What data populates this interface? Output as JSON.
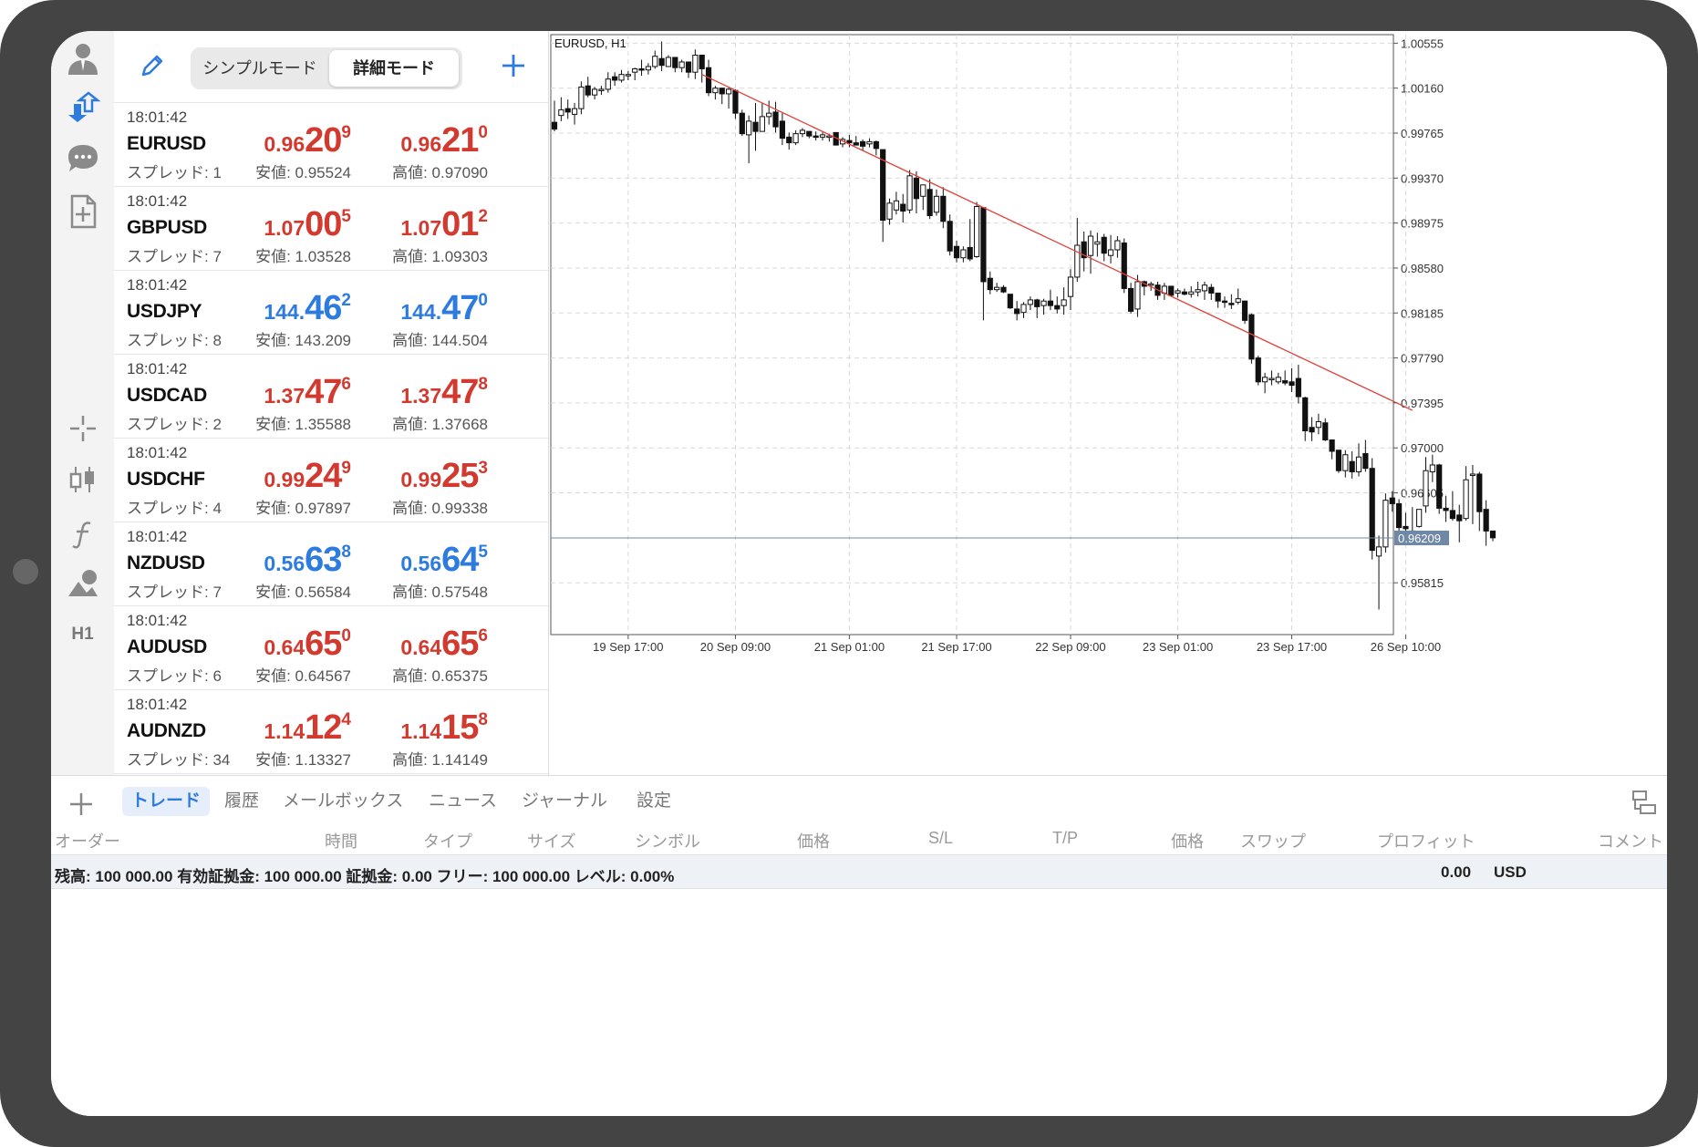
{
  "toolbar": {
    "icons": [
      "account-icon",
      "trade-arrows-icon",
      "chat-icon",
      "new-document-icon",
      "crosshair-icon",
      "chart-type-icon",
      "indicator-icon",
      "objects-icon"
    ],
    "timeframe": "H1"
  },
  "quotes_header": {
    "simple_mode": "シンプルモード",
    "detail_mode": "詳細モード"
  },
  "quotes": [
    {
      "time": "18:01:42",
      "symbol": "EURUSD",
      "spread": "スプレッド: 1",
      "bid": {
        "small": "0.96",
        "big": "20",
        "pip": "9"
      },
      "ask": {
        "small": "0.96",
        "big": "21",
        "pip": "0"
      },
      "low": "安値: 0.95524",
      "high": "高値: 0.97090",
      "color": "red"
    },
    {
      "time": "18:01:42",
      "symbol": "GBPUSD",
      "spread": "スプレッド: 7",
      "bid": {
        "small": "1.07",
        "big": "00",
        "pip": "5"
      },
      "ask": {
        "small": "1.07",
        "big": "01",
        "pip": "2"
      },
      "low": "安値: 1.03528",
      "high": "高値: 1.09303",
      "color": "red"
    },
    {
      "time": "18:01:42",
      "symbol": "USDJPY",
      "spread": "スプレッド: 8",
      "bid": {
        "small": "144.",
        "big": "46",
        "pip": "2"
      },
      "ask": {
        "small": "144.",
        "big": "47",
        "pip": "0"
      },
      "low": "安値: 143.209",
      "high": "高値: 144.504",
      "color": "blue"
    },
    {
      "time": "18:01:42",
      "symbol": "USDCAD",
      "spread": "スプレッド: 2",
      "bid": {
        "small": "1.37",
        "big": "47",
        "pip": "6"
      },
      "ask": {
        "small": "1.37",
        "big": "47",
        "pip": "8"
      },
      "low": "安値: 1.35588",
      "high": "高値: 1.37668",
      "color": "red"
    },
    {
      "time": "18:01:42",
      "symbol": "USDCHF",
      "spread": "スプレッド: 4",
      "bid": {
        "small": "0.99",
        "big": "24",
        "pip": "9"
      },
      "ask": {
        "small": "0.99",
        "big": "25",
        "pip": "3"
      },
      "low": "安値: 0.97897",
      "high": "高値: 0.99338",
      "color": "red"
    },
    {
      "time": "18:01:42",
      "symbol": "NZDUSD",
      "spread": "スプレッド: 7",
      "bid": {
        "small": "0.56",
        "big": "63",
        "pip": "8"
      },
      "ask": {
        "small": "0.56",
        "big": "64",
        "pip": "5"
      },
      "low": "安値: 0.56584",
      "high": "高値: 0.57548",
      "color": "blue"
    },
    {
      "time": "18:01:42",
      "symbol": "AUDUSD",
      "spread": "スプレッド: 6",
      "bid": {
        "small": "0.64",
        "big": "65",
        "pip": "0"
      },
      "ask": {
        "small": "0.64",
        "big": "65",
        "pip": "6"
      },
      "low": "安値: 0.64567",
      "high": "高値: 0.65375",
      "color": "red"
    },
    {
      "time": "18:01:42",
      "symbol": "AUDNZD",
      "spread": "スプレッド: 34",
      "bid": {
        "small": "1.14",
        "big": "12",
        "pip": "4"
      },
      "ask": {
        "small": "1.14",
        "big": "15",
        "pip": "8"
      },
      "low": "安値: 1.13327",
      "high": "高値: 1.14149",
      "color": "red"
    }
  ],
  "chart_data": {
    "type": "candlestick",
    "title": "EURUSD, H1",
    "y_ticks": [
      "1.00555",
      "1.00160",
      "0.99765",
      "0.99370",
      "0.98975",
      "0.98580",
      "0.98185",
      "0.97790",
      "0.97395",
      "0.97000",
      "0.96605",
      "0.96209",
      "0.95815"
    ],
    "x_ticks": [
      "19 Sep 17:00",
      "20 Sep 09:00",
      "21 Sep 01:00",
      "21 Sep 17:00",
      "22 Sep 09:00",
      "23 Sep 01:00",
      "23 Sep 17:00",
      "26 Sep 10:00"
    ],
    "ylim": [
      0.9536,
      1.0063
    ],
    "current_price": 0.96209,
    "current_price_label": "0.96209",
    "grid": true,
    "trendline": {
      "from": {
        "bar": 22,
        "price": 1.0028
      },
      "to": {
        "bar": 128,
        "price": 0.9733
      }
    },
    "candles": [
      [
        0.9986,
        0.998,
        1.0005,
        0.9978
      ],
      [
        0.9992,
        0.9997,
        1.0008,
        0.9987
      ],
      [
        0.9998,
        0.9995,
        1.0006,
        0.9989
      ],
      [
        0.9993,
        0.9998,
        1.0003,
        0.9984
      ],
      [
        0.9998,
        1.0017,
        1.0022,
        0.9993
      ],
      [
        1.0018,
        1.001,
        1.0026,
        1.0008
      ],
      [
        1.001,
        1.0015,
        1.0017,
        1.0006
      ],
      [
        1.0015,
        1.0015,
        1.0018,
        1.001
      ],
      [
        1.0015,
        1.0024,
        1.003,
        1.0012
      ],
      [
        1.0026,
        1.0023,
        1.003,
        1.0018
      ],
      [
        1.0023,
        1.0028,
        1.0032,
        1.0021
      ],
      [
        1.0027,
        1.0028,
        1.0031,
        1.0023
      ],
      [
        1.003,
        1.0033,
        1.0034,
        1.0023
      ],
      [
        1.0033,
        1.0032,
        1.0041,
        1.0027
      ],
      [
        1.0032,
        1.0035,
        1.0038,
        1.0028
      ],
      [
        1.0035,
        1.0044,
        1.0049,
        1.0033
      ],
      [
        1.0042,
        1.0036,
        1.0057,
        1.0031
      ],
      [
        1.0035,
        1.0043,
        1.0045,
        1.0035
      ],
      [
        1.0043,
        1.0034,
        1.0043,
        1.003
      ],
      [
        1.0034,
        1.0039,
        1.0041,
        1.003
      ],
      [
        1.0039,
        1.003,
        1.0039,
        1.0025
      ],
      [
        1.003,
        1.0045,
        1.005,
        1.0024
      ],
      [
        1.0045,
        1.0033,
        1.0045,
        1.0021
      ],
      [
        1.0034,
        1.0012,
        1.0041,
        1.0009
      ],
      [
        1.0012,
        1.0016,
        1.0018,
        1.0006
      ],
      [
        1.0016,
        1.0011,
        1.0016,
        1.0002
      ],
      [
        1.0011,
        1.0015,
        1.0017,
        0.9998
      ],
      [
        1.0014,
        0.9994,
        1.0015,
        0.9989
      ],
      [
        0.9994,
        0.9976,
        0.9997,
        0.9974
      ],
      [
        0.9975,
        0.9987,
        0.9992,
        0.995
      ],
      [
        0.9986,
        0.9978,
        1.0003,
        0.9961
      ],
      [
        0.9978,
        0.9991,
        1.0003,
        0.9978
      ],
      [
        0.9991,
        0.9994,
        1.0005,
        0.9984
      ],
      [
        0.9995,
        0.9982,
        1.0004,
        0.9977
      ],
      [
        0.9987,
        0.9972,
        0.9994,
        0.9966
      ],
      [
        0.9973,
        0.9968,
        0.9977,
        0.9962
      ],
      [
        0.9968,
        0.9976,
        0.9979,
        0.9966
      ],
      [
        0.9976,
        0.9979,
        0.9981,
        0.9973
      ],
      [
        0.9978,
        0.9974,
        0.9978,
        0.9972
      ],
      [
        0.9974,
        0.9973,
        0.9978,
        0.997
      ],
      [
        0.9973,
        0.9975,
        0.9977,
        0.997
      ],
      [
        0.9974,
        0.9974,
        0.9976,
        0.9969
      ],
      [
        0.9977,
        0.9966,
        0.9977,
        0.9966
      ],
      [
        0.9967,
        0.9971,
        0.9973,
        0.9964
      ],
      [
        0.997,
        0.9968,
        0.9975,
        0.9964
      ],
      [
        0.9968,
        0.9966,
        0.9974,
        0.9966
      ],
      [
        0.9969,
        0.9965,
        0.9971,
        0.9961
      ],
      [
        0.9967,
        0.9969,
        0.9972,
        0.9964
      ],
      [
        0.9969,
        0.9963,
        0.997,
        0.9957
      ],
      [
        0.9962,
        0.99,
        0.9962,
        0.9881
      ],
      [
        0.9901,
        0.9915,
        0.9919,
        0.9896
      ],
      [
        0.9909,
        0.9917,
        0.9925,
        0.9905
      ],
      [
        0.9914,
        0.9908,
        0.9923,
        0.9898
      ],
      [
        0.9909,
        0.9939,
        0.9944,
        0.9906
      ],
      [
        0.9937,
        0.9919,
        0.9943,
        0.9906
      ],
      [
        0.9921,
        0.9931,
        0.9931,
        0.9909
      ],
      [
        0.9927,
        0.9904,
        0.9936,
        0.9901
      ],
      [
        0.9907,
        0.9921,
        0.9927,
        0.9904
      ],
      [
        0.9921,
        0.9899,
        0.9929,
        0.9893
      ],
      [
        0.9899,
        0.9873,
        0.9905,
        0.9869
      ],
      [
        0.9877,
        0.9867,
        0.9882,
        0.9863
      ],
      [
        0.9867,
        0.9874,
        0.9877,
        0.9863
      ],
      [
        0.9876,
        0.9866,
        0.9901,
        0.9864
      ],
      [
        0.9868,
        0.9912,
        0.9916,
        0.9867
      ],
      [
        0.9911,
        0.9846,
        0.9911,
        0.9812
      ],
      [
        0.9849,
        0.9839,
        0.9855,
        0.9835
      ],
      [
        0.9839,
        0.9841,
        0.9845,
        0.9837
      ],
      [
        0.9841,
        0.9837,
        0.9843,
        0.9836
      ],
      [
        0.9835,
        0.9823,
        0.9835,
        0.9822
      ],
      [
        0.9822,
        0.9818,
        0.9829,
        0.9812
      ],
      [
        0.9819,
        0.9826,
        0.9828,
        0.9814
      ],
      [
        0.9826,
        0.983,
        0.9833,
        0.9821
      ],
      [
        0.983,
        0.9824,
        0.9831,
        0.9814
      ],
      [
        0.9825,
        0.9829,
        0.9831,
        0.9817
      ],
      [
        0.9829,
        0.9825,
        0.9839,
        0.9821
      ],
      [
        0.9825,
        0.9822,
        0.9833,
        0.9818
      ],
      [
        0.9825,
        0.983,
        0.9841,
        0.9817
      ],
      [
        0.9833,
        0.985,
        0.9857,
        0.9821
      ],
      [
        0.985,
        0.9878,
        0.9902,
        0.9846
      ],
      [
        0.9881,
        0.9867,
        0.989,
        0.9855
      ],
      [
        0.9869,
        0.9886,
        0.9891,
        0.9853
      ],
      [
        0.9879,
        0.9881,
        0.9889,
        0.9868
      ],
      [
        0.9885,
        0.9871,
        0.9888,
        0.9864
      ],
      [
        0.9869,
        0.9874,
        0.9887,
        0.9862
      ],
      [
        0.9874,
        0.9882,
        0.9886,
        0.9867
      ],
      [
        0.988,
        0.984,
        0.9884,
        0.9836
      ],
      [
        0.984,
        0.982,
        0.9845,
        0.9818
      ],
      [
        0.9822,
        0.9846,
        0.9852,
        0.9815
      ],
      [
        0.9846,
        0.9842,
        0.9847,
        0.9834
      ],
      [
        0.9844,
        0.9844,
        0.9846,
        0.9838
      ],
      [
        0.9843,
        0.9834,
        0.9846,
        0.983
      ],
      [
        0.9836,
        0.9842,
        0.9845,
        0.983
      ],
      [
        0.9842,
        0.9834,
        0.9842,
        0.9833
      ],
      [
        0.9836,
        0.9838,
        0.984,
        0.9832
      ],
      [
        0.9837,
        0.9835,
        0.984,
        0.9834
      ],
      [
        0.9835,
        0.9837,
        0.9842,
        0.9832
      ],
      [
        0.9837,
        0.9839,
        0.9846,
        0.9833
      ],
      [
        0.9838,
        0.9843,
        0.9846,
        0.983
      ],
      [
        0.9841,
        0.9836,
        0.9844,
        0.983
      ],
      [
        0.9836,
        0.9829,
        0.9836,
        0.9823
      ],
      [
        0.9829,
        0.9828,
        0.9833,
        0.9823
      ],
      [
        0.9827,
        0.9826,
        0.9835,
        0.9822
      ],
      [
        0.9828,
        0.9831,
        0.984,
        0.9826
      ],
      [
        0.9829,
        0.9812,
        0.9829,
        0.9809
      ],
      [
        0.9817,
        0.9778,
        0.9818,
        0.9774
      ],
      [
        0.9779,
        0.9758,
        0.9781,
        0.9755
      ],
      [
        0.9758,
        0.9762,
        0.9766,
        0.9748
      ],
      [
        0.976,
        0.9761,
        0.9768,
        0.9755
      ],
      [
        0.9758,
        0.9762,
        0.9766,
        0.9756
      ],
      [
        0.9759,
        0.9757,
        0.9768,
        0.9755
      ],
      [
        0.9758,
        0.9755,
        0.977,
        0.9749
      ],
      [
        0.9761,
        0.9745,
        0.9773,
        0.9739
      ],
      [
        0.9744,
        0.9715,
        0.9745,
        0.9706
      ],
      [
        0.9718,
        0.9714,
        0.9727,
        0.9706
      ],
      [
        0.9718,
        0.9723,
        0.973,
        0.9712
      ],
      [
        0.9722,
        0.9707,
        0.9726,
        0.9706
      ],
      [
        0.9707,
        0.9697,
        0.9707,
        0.969
      ],
      [
        0.9698,
        0.968,
        0.9698,
        0.9678
      ],
      [
        0.968,
        0.9694,
        0.9698,
        0.9674
      ],
      [
        0.9688,
        0.9679,
        0.9697,
        0.9673
      ],
      [
        0.9679,
        0.9692,
        0.9704,
        0.9675
      ],
      [
        0.9695,
        0.9682,
        0.9707,
        0.9679
      ],
      [
        0.9682,
        0.961,
        0.9691,
        0.9602
      ],
      [
        0.9605,
        0.9613,
        0.9623,
        0.9558
      ],
      [
        0.9613,
        0.9654,
        0.966,
        0.9608
      ],
      [
        0.9656,
        0.9651,
        0.9662,
        0.9644
      ],
      [
        0.9651,
        0.963,
        0.9655,
        0.9624
      ],
      [
        0.9631,
        0.9629,
        0.9643,
        0.9622
      ],
      [
        0.9627,
        0.9627,
        0.9648,
        0.9621
      ],
      [
        0.9631,
        0.9646,
        0.9646,
        0.963
      ],
      [
        0.9649,
        0.968,
        0.9692,
        0.9643
      ],
      [
        0.9679,
        0.9685,
        0.9694,
        0.967
      ],
      [
        0.9685,
        0.9647,
        0.9686,
        0.9642
      ],
      [
        0.9647,
        0.9645,
        0.9658,
        0.9635
      ],
      [
        0.9645,
        0.9638,
        0.9662,
        0.9636
      ],
      [
        0.9641,
        0.9636,
        0.965,
        0.9617
      ],
      [
        0.9638,
        0.9672,
        0.9684,
        0.9636
      ],
      [
        0.9676,
        0.9677,
        0.9685,
        0.9633
      ],
      [
        0.9677,
        0.9644,
        0.9679,
        0.9627
      ],
      [
        0.9646,
        0.9627,
        0.9654,
        0.9614
      ],
      [
        0.9627,
        0.9621,
        0.9623,
        0.9618
      ]
    ]
  },
  "terminal": {
    "tabs": [
      "トレード",
      "履歴",
      "メールボックス",
      "ニュース",
      "ジャーナル",
      "設定"
    ],
    "columns": [
      "オーダー",
      "時間",
      "タイプ",
      "サイズ",
      "シンボル",
      "価格",
      "S/L",
      "T/P",
      "価格",
      "スワップ",
      "プロフィット",
      "コメント"
    ],
    "summary": "残高: 100 000.00 有効証拠金: 100 000.00 証拠金: 0.00 フリー: 100 000.00 レベル: 0.00%",
    "profit": "0.00",
    "currency": "USD"
  },
  "colors": {
    "bid_red": "#d23a30",
    "bid_blue": "#2e7be0",
    "accent": "#2e7be0",
    "trendline": "#e0413a",
    "current_line": "#6f88a6"
  }
}
